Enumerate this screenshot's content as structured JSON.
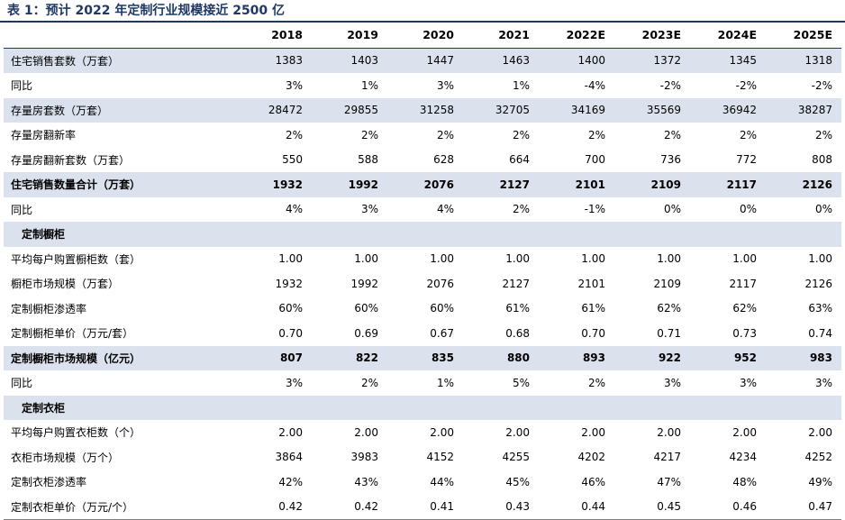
{
  "title": "表 1：预计 2022 年定制行业规模接近 2500 亿",
  "years": [
    "2018",
    "2019",
    "2020",
    "2021",
    "2022E",
    "2023E",
    "2024E",
    "2025E"
  ],
  "rows": [
    {
      "label": "住宅销售套数（万套）",
      "values": [
        "1383",
        "1403",
        "1447",
        "1463",
        "1400",
        "1372",
        "1345",
        "1318"
      ],
      "shade": true,
      "bold": false
    },
    {
      "label": "同比",
      "values": [
        "3%",
        "1%",
        "3%",
        "1%",
        "-4%",
        "-2%",
        "-2%",
        "-2%"
      ],
      "shade": false,
      "bold": false
    },
    {
      "label": "存量房套数（万套）",
      "values": [
        "28472",
        "29855",
        "31258",
        "32705",
        "34169",
        "35569",
        "36942",
        "38287"
      ],
      "shade": true,
      "bold": false
    },
    {
      "label": "存量房翻新率",
      "values": [
        "2%",
        "2%",
        "2%",
        "2%",
        "2%",
        "2%",
        "2%",
        "2%"
      ],
      "shade": false,
      "bold": false
    },
    {
      "label": "存量房翻新套数（万套）",
      "values": [
        "550",
        "588",
        "628",
        "664",
        "700",
        "736",
        "772",
        "808"
      ],
      "shade": false,
      "bold": false
    },
    {
      "label": "住宅销售数量合计（万套）",
      "values": [
        "1932",
        "1992",
        "2076",
        "2127",
        "2101",
        "2109",
        "2117",
        "2126"
      ],
      "shade": true,
      "bold": true
    },
    {
      "label": "同比",
      "values": [
        "4%",
        "3%",
        "4%",
        "2%",
        "-1%",
        "0%",
        "0%",
        "0%"
      ],
      "shade": false,
      "bold": false
    },
    {
      "label": "定制橱柜",
      "values": [
        "",
        "",
        "",
        "",
        "",
        "",
        "",
        ""
      ],
      "shade": true,
      "bold": false,
      "section": true
    },
    {
      "label": "平均每户购置橱柜数（套）",
      "values": [
        "1.00",
        "1.00",
        "1.00",
        "1.00",
        "1.00",
        "1.00",
        "1.00",
        "1.00"
      ],
      "shade": false,
      "bold": false
    },
    {
      "label": "橱柜市场规模（万套）",
      "values": [
        "1932",
        "1992",
        "2076",
        "2127",
        "2101",
        "2109",
        "2117",
        "2126"
      ],
      "shade": false,
      "bold": false
    },
    {
      "label": "定制橱柜渗透率",
      "values": [
        "60%",
        "60%",
        "60%",
        "61%",
        "61%",
        "62%",
        "62%",
        "63%"
      ],
      "shade": false,
      "bold": false
    },
    {
      "label": "定制橱柜单价（万元/套）",
      "values": [
        "0.70",
        "0.69",
        "0.67",
        "0.68",
        "0.70",
        "0.71",
        "0.73",
        "0.74"
      ],
      "shade": false,
      "bold": false
    },
    {
      "label": "定制橱柜市场规模（亿元）",
      "values": [
        "807",
        "822",
        "835",
        "880",
        "893",
        "922",
        "952",
        "983"
      ],
      "shade": true,
      "bold": true
    },
    {
      "label": "同比",
      "values": [
        "3%",
        "2%",
        "1%",
        "5%",
        "2%",
        "3%",
        "3%",
        "3%"
      ],
      "shade": false,
      "bold": false
    },
    {
      "label": "定制衣柜",
      "values": [
        "",
        "",
        "",
        "",
        "",
        "",
        "",
        ""
      ],
      "shade": true,
      "bold": false,
      "section": true
    },
    {
      "label": "平均每户购置衣柜数（个）",
      "values": [
        "2.00",
        "2.00",
        "2.00",
        "2.00",
        "2.00",
        "2.00",
        "2.00",
        "2.00"
      ],
      "shade": false,
      "bold": false
    },
    {
      "label": "衣柜市场规模（万个）",
      "values": [
        "3864",
        "3983",
        "4152",
        "4255",
        "4202",
        "4217",
        "4234",
        "4252"
      ],
      "shade": false,
      "bold": false
    },
    {
      "label": "定制衣柜渗透率",
      "values": [
        "42%",
        "43%",
        "44%",
        "45%",
        "46%",
        "47%",
        "48%",
        "49%"
      ],
      "shade": false,
      "bold": false
    },
    {
      "label": "定制衣柜单价（万元/个）",
      "values": [
        "0.42",
        "0.42",
        "0.41",
        "0.43",
        "0.44",
        "0.45",
        "0.46",
        "0.47"
      ],
      "shade": false,
      "bold": false
    }
  ]
}
